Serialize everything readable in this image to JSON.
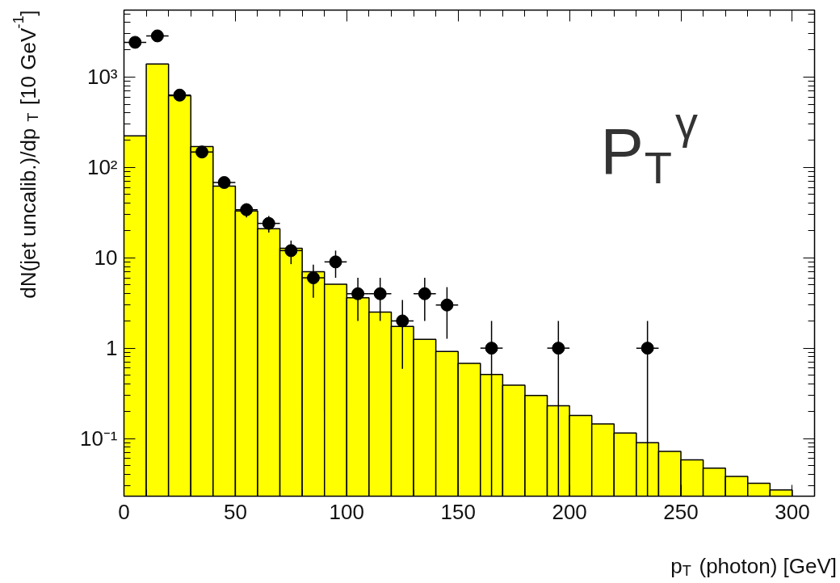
{
  "chart_data": {
    "type": "histogram",
    "xlabel": "p$_{T}$ (photon) [GeV]",
    "ylabel": "dN(jet uncalib.)/dp$_{T}$ [10 GeV$^{-1}$]",
    "annotations": [
      "P$_{T}$$^{γ}$"
    ],
    "bins": [
      0,
      10,
      20,
      30,
      40,
      50,
      60,
      70,
      80,
      90,
      100,
      110,
      120,
      130,
      140,
      150,
      160,
      170,
      180,
      190,
      200,
      210,
      220,
      230,
      240,
      250,
      260,
      270,
      280,
      290,
      300
    ],
    "series": [
      {
        "color": "#ffff00",
        "values": [
          223,
          1390,
          620,
          170,
          62,
          33,
          21,
          12.7,
          7,
          5.1,
          3.6,
          2.5,
          1.74,
          1.25,
          0.92,
          0.68,
          0.51,
          0.39,
          0.3,
          0.23,
          0.18,
          0.145,
          0.115,
          0.09,
          0.072,
          0.058,
          0.047,
          0.038,
          0.032,
          0.027
        ]
      },
      {
        "type": "scatter",
        "color": "#000000",
        "x": [
          5,
          15,
          25,
          35,
          45,
          55,
          65,
          75,
          85,
          95,
          105,
          115,
          125,
          135,
          145,
          165,
          195,
          235
        ],
        "values": [
          2420,
          2850,
          630,
          148,
          68,
          34,
          24,
          12,
          6,
          9,
          4,
          4,
          2,
          4,
          3,
          1,
          1,
          1
        ],
        "errors": [
          [
            2371,
            2469
          ],
          [
            2797,
            2903
          ],
          [
            605,
            655
          ],
          null,
          [
            60,
            76
          ],
          [
            28,
            40
          ],
          [
            19,
            29
          ],
          [
            8.5,
            15.5
          ],
          [
            3.6,
            8.4
          ],
          [
            6,
            12
          ],
          [
            2,
            6
          ],
          [
            2,
            6
          ],
          [
            0.59,
            3.41
          ],
          [
            2,
            6
          ],
          [
            1.27,
            4.73
          ],
          [
            0.023,
            2
          ],
          [
            0.023,
            2
          ],
          [
            0.023,
            2
          ]
        ],
        "xerrors": [
          5,
          5,
          5,
          5,
          5,
          5,
          5,
          5,
          5,
          5,
          5,
          5,
          5,
          5,
          5,
          5,
          5,
          5
        ]
      }
    ],
    "log": "y",
    "marker": "circle",
    "xlim": [
      0,
      310
    ],
    "ylim": [
      0.023,
      5500
    ],
    "xticks": [
      0,
      50,
      100,
      150,
      200,
      250,
      300
    ],
    "yticks": [
      {
        "value": 0.1,
        "label": "10⁻¹"
      },
      1,
      10,
      {
        "value": 100,
        "label": "10²"
      },
      {
        "value": 1000,
        "label": "10³"
      }
    ]
  }
}
